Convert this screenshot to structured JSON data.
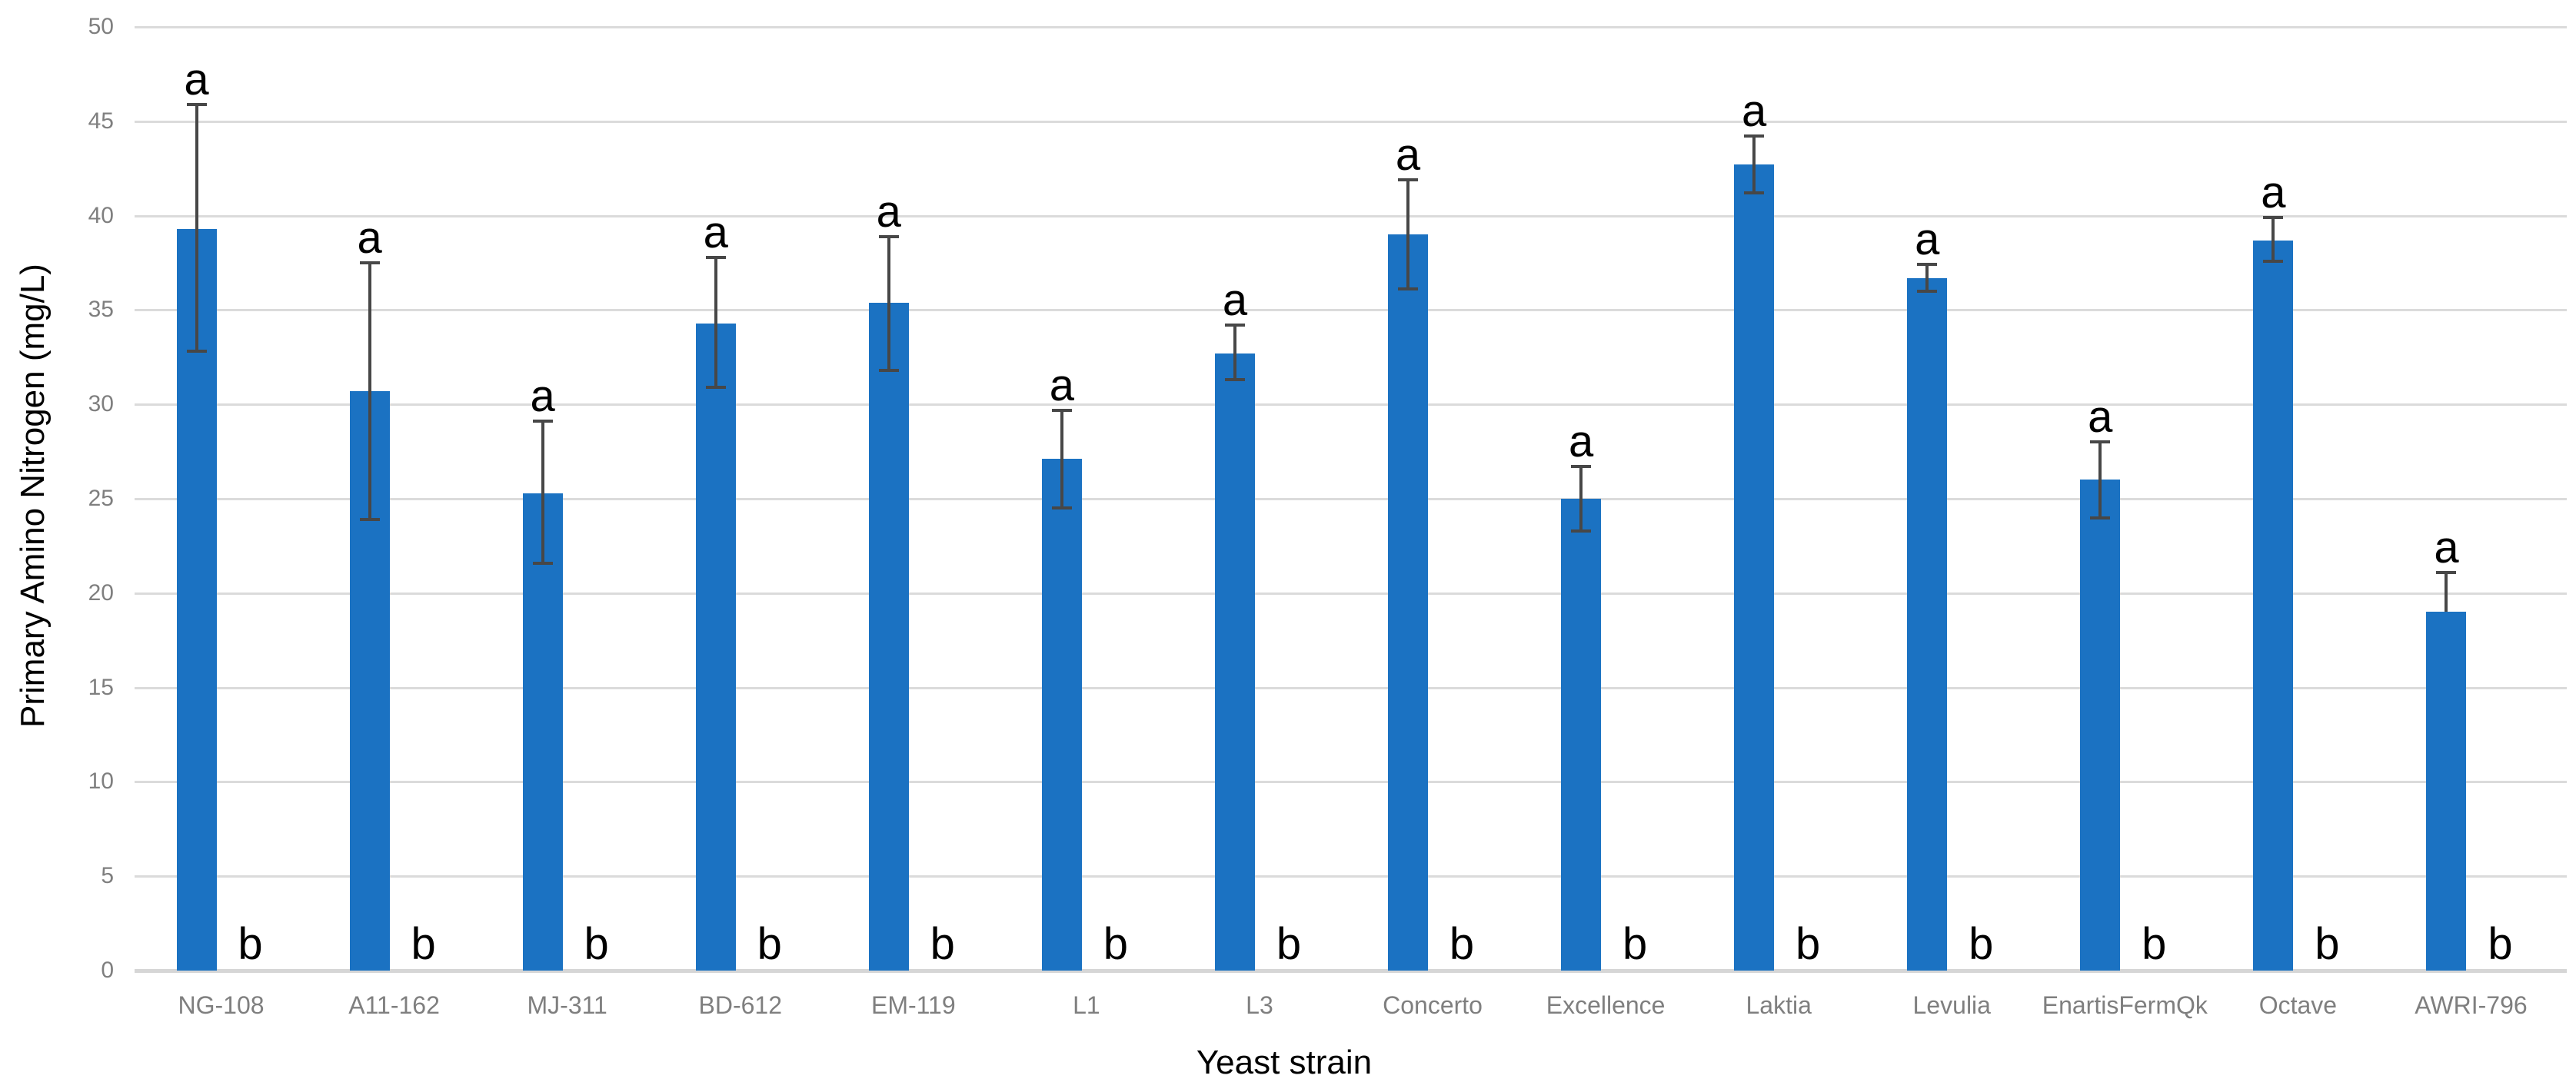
{
  "chart_data": {
    "type": "bar",
    "title": "",
    "xlabel": "Yeast strain",
    "ylabel": "Primary Amino Nitrogen (mg/L)",
    "ylim": [
      0,
      50
    ],
    "ytick_step": 5,
    "ytick_labels": [
      "0",
      "5",
      "10",
      "15",
      "20",
      "25",
      "30",
      "35",
      "40",
      "45",
      "50"
    ],
    "grid": true,
    "legend": "none",
    "categories": [
      "NG-108",
      "A11-162",
      "MJ-311",
      "BD-612",
      "EM-119",
      "L1",
      "L3",
      "Concerto",
      "Excellence",
      "Laktia",
      "Levulia",
      "EnartisFermQk",
      "Octave",
      "AWRI-796"
    ],
    "values": [
      39.3,
      30.7,
      25.3,
      34.3,
      35.4,
      27.1,
      32.7,
      39.0,
      25.0,
      42.7,
      36.7,
      26.0,
      38.7,
      19.0
    ],
    "error_up": [
      6.6,
      6.8,
      3.8,
      3.5,
      3.5,
      2.6,
      1.5,
      2.9,
      1.7,
      1.5,
      0.7,
      2.0,
      1.2,
      2.1
    ],
    "error_down": [
      6.5,
      6.8,
      3.7,
      3.4,
      3.6,
      2.6,
      1.4,
      2.9,
      1.7,
      1.5,
      0.7,
      2.0,
      1.1,
      0
    ],
    "letters_above_bars": [
      "a",
      "a",
      "a",
      "a",
      "a",
      "a",
      "a",
      "a",
      "a",
      "a",
      "a",
      "a",
      "a",
      "a"
    ],
    "letters_near_baseline": [
      "b",
      "b",
      "b",
      "b",
      "b",
      "b",
      "b",
      "b",
      "b",
      "b",
      "b",
      "b",
      "b",
      "b"
    ],
    "colors": {
      "bar": "#1B72C2",
      "error_bar": "#474747",
      "gridline": "#DBDBDB",
      "axis_line": "#D6D6D6",
      "tick_text": "#7F7F7F",
      "title_text": "#000000",
      "letter_text": "#000000"
    }
  }
}
